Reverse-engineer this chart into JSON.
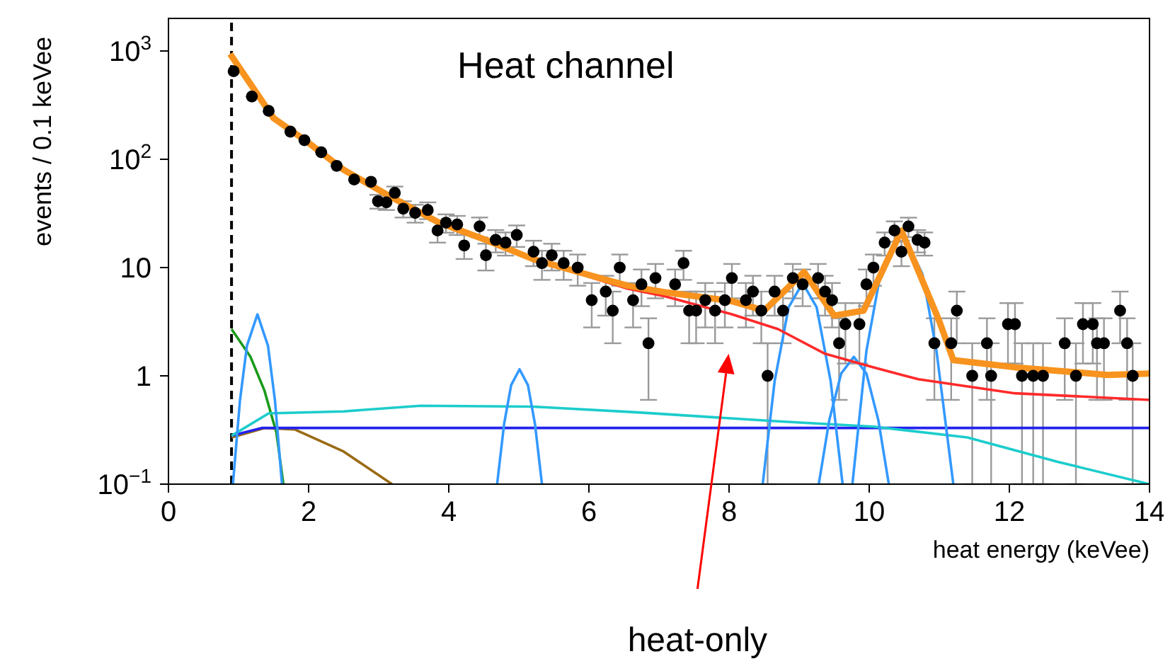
{
  "chart_data": {
    "type": "line",
    "xlabel": "heat energy (keVee)",
    "ylabel": "events / 0.1 keVee",
    "log": true,
    "marker": "none",
    "line_style": "solid",
    "xlim": [
      0,
      14
    ],
    "xticks": [
      0,
      2,
      4,
      6,
      8,
      10,
      12,
      14
    ],
    "ylim": [
      0.1,
      2000
    ],
    "yticks": [
      {
        "value": 0.1,
        "label": "10$^{−1}$"
      },
      1,
      10,
      {
        "value": 100,
        "label": "10$^{2}$"
      },
      {
        "value": 1000,
        "label": "10$^{3}$"
      }
    ],
    "ref_lines": [
      {
        "axis": "x",
        "value": 0.9,
        "color": "#000000",
        "line_style": "dashed"
      }
    ],
    "annotations": [
      "Heat channel",
      "heat-only"
    ],
    "series": [
      {
        "type": "scatter",
        "marker": "circle",
        "color": "#000000",
        "x": [
          0.93,
          1.19,
          1.43,
          1.74,
          1.94,
          2.18,
          2.4,
          2.65,
          2.89,
          2.99,
          3.11,
          3.23,
          3.35,
          3.52,
          3.7,
          3.84,
          3.96,
          4.12,
          4.22,
          4.44,
          4.53,
          4.67,
          4.81,
          4.97,
          5.21,
          5.33,
          5.47,
          5.64,
          5.84,
          6.04,
          6.24,
          6.34,
          6.44,
          6.63,
          6.75,
          6.85,
          6.95,
          7.23,
          7.35,
          7.43,
          7.53,
          7.66,
          7.8,
          7.94,
          8.04,
          8.24,
          8.34,
          8.46,
          8.55,
          8.65,
          8.77,
          8.91,
          9.05,
          9.27,
          9.37,
          9.47,
          9.57,
          9.66,
          9.86,
          9.96,
          10.06,
          10.22,
          10.36,
          10.46,
          10.56,
          10.69,
          10.79,
          10.93,
          11.17,
          11.25,
          11.47,
          11.68,
          11.74,
          11.98,
          12.08,
          12.18,
          12.34,
          12.48,
          12.79,
          12.95,
          13.05,
          13.19,
          13.25,
          13.35,
          13.58,
          13.68,
          13.76
        ],
        "values": [
          650,
          380,
          280,
          180,
          150,
          116,
          87,
          65,
          62,
          41,
          40,
          49,
          35,
          32,
          34,
          22,
          26,
          25,
          16,
          24,
          13,
          18,
          17,
          20,
          14,
          11,
          13,
          11,
          10,
          5,
          6,
          4,
          10,
          5,
          7,
          2,
          8,
          7,
          11,
          4,
          4,
          5,
          4,
          5,
          8,
          5,
          6,
          4,
          1,
          6,
          4,
          8,
          7,
          8,
          6,
          5,
          2,
          3,
          3,
          7,
          10,
          17,
          22,
          14,
          24,
          18,
          17,
          2,
          2,
          4,
          1,
          2,
          1,
          3,
          3,
          1,
          1,
          1,
          2,
          1,
          3,
          3,
          2,
          2,
          4,
          2,
          1
        ],
        "errors": [
          null,
          null,
          null,
          null,
          null,
          null,
          null,
          null,
          null,
          6,
          6,
          7,
          6,
          6,
          6,
          5,
          5,
          5,
          4,
          5,
          3.6,
          4.2,
          4.1,
          4.5,
          3.7,
          3.3,
          3.6,
          3.3,
          3.2,
          2.2,
          2.4,
          2,
          3.2,
          2.2,
          2.6,
          1.4,
          2.8,
          2.6,
          3.3,
          2,
          2,
          2.2,
          2,
          2.2,
          2.8,
          2.2,
          2.4,
          2,
          [
            0.1,
            2
          ],
          2.4,
          2,
          2.8,
          2.6,
          2.8,
          2.4,
          2.2,
          1.4,
          1.7,
          1.7,
          2.6,
          3.2,
          4.1,
          4.7,
          3.7,
          4.9,
          4.2,
          4.1,
          1.4,
          1.4,
          2,
          [
            0.1,
            2
          ],
          1.4,
          [
            0.1,
            2
          ],
          1.7,
          1.7,
          [
            0.1,
            2
          ],
          [
            0.1,
            2
          ],
          [
            0.1,
            2
          ],
          1.4,
          [
            0.1,
            2
          ],
          1.7,
          1.7,
          1.4,
          1.4,
          2,
          1.4,
          [
            0.1,
            2
          ]
        ]
      },
      {
        "color": "#9a6a14",
        "x": [
          0.9,
          1.37,
          1.8,
          2.5,
          3.19
        ],
        "values": [
          0.27,
          0.33,
          0.32,
          0.2,
          0.1
        ]
      },
      {
        "color": "#1a9a1a",
        "x": [
          0.9,
          1.17,
          1.37,
          1.54,
          1.64
        ],
        "values": [
          2.7,
          1.5,
          0.73,
          0.3,
          0.1
        ]
      },
      {
        "color": "#2222ee",
        "x": [
          0.9,
          1.33,
          14
        ],
        "values": [
          0.28,
          0.33,
          0.33
        ]
      },
      {
        "color": "#1ccccc",
        "x": [
          0.9,
          1.43,
          2.5,
          3.6,
          5.2,
          6.7,
          8.7,
          10.06,
          11.4,
          12.7,
          14
        ],
        "values": [
          0.28,
          0.45,
          0.47,
          0.53,
          0.52,
          0.46,
          0.38,
          0.34,
          0.27,
          0.16,
          0.1
        ]
      },
      {
        "color": "#3399ff",
        "x": [
          0.92,
          1.02,
          1.12,
          1.27,
          1.42,
          1.52,
          1.62
        ],
        "values": [
          0.1,
          0.59,
          1.9,
          3.7,
          1.9,
          0.59,
          0.1
        ]
      },
      {
        "color": "#3399ff",
        "x": [
          4.69,
          4.79,
          4.89,
          5.01,
          5.13,
          5.23,
          5.33
        ],
        "values": [
          0.1,
          0.36,
          0.82,
          1.15,
          0.82,
          0.36,
          0.1
        ]
      },
      {
        "color": "#3399ff",
        "x": [
          8.48,
          8.65,
          8.85,
          9.05,
          9.25,
          9.45,
          9.62
        ],
        "values": [
          0.1,
          0.89,
          4.3,
          7.2,
          4.3,
          0.89,
          0.1
        ]
      },
      {
        "color": "#3399ff",
        "x": [
          9.28,
          9.43,
          9.6,
          9.78,
          9.96,
          10.13,
          10.28
        ],
        "values": [
          0.1,
          0.39,
          1.05,
          1.5,
          1.05,
          0.39,
          0.1
        ]
      },
      {
        "color": "#3399ff",
        "x": [
          9.76,
          9.96,
          10.16,
          10.46,
          10.76,
          10.96,
          11.2
        ],
        "values": [
          0.1,
          1.7,
          8.7,
          22,
          8.7,
          1.7,
          0.1
        ]
      },
      {
        "color": "#ff2a2a",
        "x": [
          0.88,
          1.5,
          1.98,
          2.5,
          3.2,
          3.86,
          4.53,
          5.2,
          5.9,
          6.55,
          7.1,
          8.04,
          8.7,
          9.37,
          10.06,
          10.7,
          12.08,
          14
        ],
        "values": [
          940,
          240,
          145,
          80,
          44,
          26,
          18,
          12,
          8.6,
          6.4,
          5.4,
          3.7,
          2.7,
          1.6,
          1.2,
          0.93,
          0.69,
          0.6
        ]
      },
      {
        "color": "#f7931e",
        "x": [
          0.88,
          1.5,
          1.98,
          2.5,
          3.2,
          3.86,
          4.53,
          5.2,
          5.9,
          6.55,
          7.1,
          8.04,
          8.5,
          9.07,
          9.5,
          9.92,
          10.46,
          11.0,
          11.2,
          12.08,
          13.4,
          14
        ],
        "values": [
          940,
          240,
          145,
          80,
          44,
          26,
          18,
          12,
          8.9,
          6.8,
          5.9,
          4.9,
          4.0,
          9.1,
          3.6,
          4.0,
          22,
          3.2,
          1.4,
          1.2,
          1.02,
          1.05
        ]
      }
    ]
  }
}
